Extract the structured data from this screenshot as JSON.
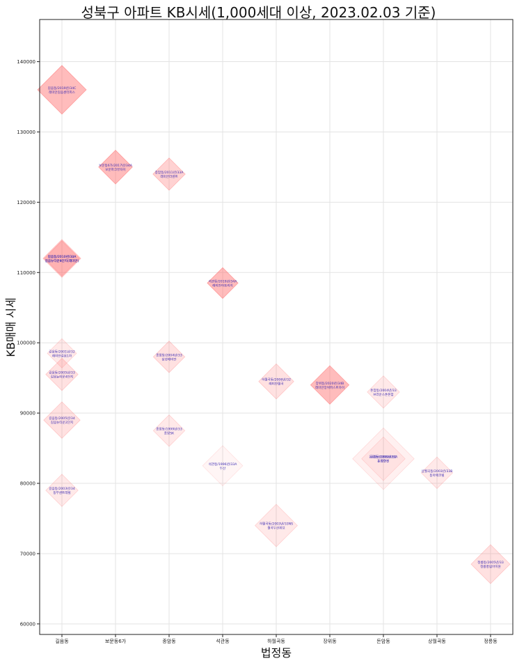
{
  "chart_data": {
    "type": "scatter",
    "title": "성북구 아파트 KB시세(1,000세대 이상, 2023.02.03 기준)",
    "xlabel": "법정동",
    "ylabel": "KB매매 시세",
    "categories": [
      "길음동",
      "보문동6가",
      "종암동",
      "석관동",
      "하월곡동",
      "장위동",
      "돈암동",
      "상월곡동",
      "정릉동"
    ],
    "yticks": [
      60000,
      70000,
      80000,
      90000,
      100000,
      110000,
      120000,
      130000,
      140000
    ],
    "ylim": [
      58500,
      146000
    ],
    "grid": true,
    "marker": "diamond",
    "marker_color": "#ff6b6b",
    "label_color": "#3b2bb3",
    "points": [
      {
        "category": "길음동",
        "value": 136000,
        "size": 2500,
        "alpha": 0.45,
        "label1": "길음동/2019년/34C",
        "label2": "래미안길음센터피스"
      },
      {
        "category": "보문동6가",
        "value": 125000,
        "size": 1200,
        "alpha": 0.45,
        "label1": "보문동6가/2017년/34A",
        "label2": "보문파크뷰자이"
      },
      {
        "category": "종암동",
        "value": 124000,
        "size": 1100,
        "alpha": 0.3,
        "label1": "종암동/2011년/33A",
        "label2": "래미안라센트"
      },
      {
        "category": "길음동",
        "value": 112000,
        "size": 1300,
        "alpha": 0.3,
        "label1": "길음동/2010년/33A",
        "label2": "길음뉴타운8단지(래미안)"
      },
      {
        "category": "길음동",
        "value": 112000,
        "size": 1500,
        "alpha": 0.3,
        "label1": "길음동/2010년/34A",
        "label2": "길음뉴타운9단지(래미안)"
      },
      {
        "category": "석관동",
        "value": 108500,
        "size": 1000,
        "alpha": 0.45,
        "label1": "석관동/2019년/34A",
        "label2": "래미안아트리치"
      },
      {
        "category": "길음동",
        "value": 98500,
        "size": 900,
        "alpha": 0.15,
        "label1": "길음동/2001년/32",
        "label2": "래미안길음1차"
      },
      {
        "category": "종암동",
        "value": 98000,
        "size": 1050,
        "alpha": 0.2,
        "label1": "종암동/2004년/33",
        "label2": "삼성래미안"
      },
      {
        "category": "길음동",
        "value": 95500,
        "size": 1100,
        "alpha": 0.2,
        "label1": "길음동/2005년/33",
        "label2": "길음뉴타운4단지"
      },
      {
        "category": "하월곡동",
        "value": 94500,
        "size": 1300,
        "alpha": 0.2,
        "label1": "하월곡동/2006년/32",
        "label2": "래미안월곡"
      },
      {
        "category": "장위동",
        "value": 94000,
        "size": 1560,
        "alpha": 0.45,
        "label1": "장위동/2020년/34B",
        "label2": "래미안장위퍼스트하이"
      },
      {
        "category": "돈암동",
        "value": 93000,
        "size": 1100,
        "alpha": 0.15,
        "label1": "돈암동/2004년/33",
        "label2": "브라운스톤돈암"
      },
      {
        "category": "길음동",
        "value": 89000,
        "size": 1400,
        "alpha": 0.2,
        "label1": "길음동/2005년/34",
        "label2": "길음뉴타운2단지"
      },
      {
        "category": "종암동",
        "value": 87500,
        "size": 1050,
        "alpha": 0.15,
        "label1": "종암동/1999년/33",
        "label2": "종암SK"
      },
      {
        "category": "돈암동",
        "value": 83500,
        "size": 4000,
        "alpha": 0.1,
        "label1": "돈암동/1999년/32",
        "label2": "돈암한신"
      },
      {
        "category": "돈암동",
        "value": 83500,
        "size": 2000,
        "alpha": 0.1,
        "label1": "돈암동/1998년/33A",
        "label2": "돈암한진"
      },
      {
        "category": "석관동",
        "value": 82500,
        "size": 1700,
        "alpha": 0.07,
        "label1": "석관동/1996년/33A",
        "label2": "두산"
      },
      {
        "category": "상월곡동",
        "value": 81500,
        "size": 1050,
        "alpha": 0.15,
        "label1": "상월곡동/2003년/33B",
        "label2": "동아에코빌"
      },
      {
        "category": "길음동",
        "value": 79000,
        "size": 1100,
        "alpha": 0.15,
        "label1": "길음동/2003년/34",
        "label2": "동부센트레빌"
      },
      {
        "category": "하월곡동",
        "value": 74000,
        "size": 1900,
        "alpha": 0.15,
        "label1": "하월곡동/2003년/33NS",
        "label2": "월곡두산위브"
      },
      {
        "category": "정릉동",
        "value": 68500,
        "size": 1600,
        "alpha": 0.2,
        "label1": "정릉동/2005년/33",
        "label2": "정릉풍림아이원"
      }
    ]
  }
}
